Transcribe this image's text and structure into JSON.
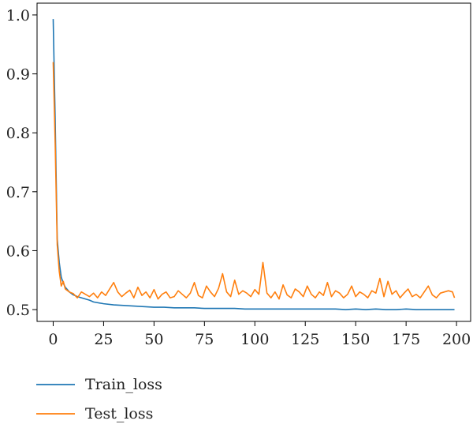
{
  "chart_data": {
    "type": "line",
    "title": "",
    "xlabel": "",
    "ylabel": "",
    "xlim": [
      -8,
      207
    ],
    "ylim": [
      0.48,
      1.02
    ],
    "xticks": [
      0,
      25,
      50,
      75,
      100,
      125,
      150,
      175,
      200
    ],
    "yticks": [
      0.5,
      0.6,
      0.7,
      0.8,
      0.9,
      1.0
    ],
    "ytick_labels": [
      "0.5",
      "0.6",
      "0.7",
      "0.8",
      "0.9",
      "1.0"
    ],
    "grid": false,
    "legend_position": "below-left",
    "series": [
      {
        "name": "Train_loss",
        "color": "#1f77b4",
        "x": [
          0,
          1,
          2,
          3,
          4,
          5,
          6,
          7,
          8,
          10,
          12,
          15,
          18,
          20,
          25,
          30,
          35,
          40,
          45,
          50,
          55,
          60,
          65,
          70,
          75,
          80,
          85,
          90,
          95,
          100,
          105,
          110,
          115,
          120,
          125,
          130,
          135,
          140,
          145,
          150,
          155,
          160,
          165,
          170,
          175,
          180,
          185,
          190,
          195,
          199
        ],
        "y": [
          0.993,
          0.82,
          0.62,
          0.58,
          0.555,
          0.545,
          0.538,
          0.534,
          0.53,
          0.525,
          0.522,
          0.519,
          0.516,
          0.513,
          0.51,
          0.508,
          0.507,
          0.506,
          0.505,
          0.504,
          0.504,
          0.503,
          0.503,
          0.503,
          0.502,
          0.502,
          0.502,
          0.502,
          0.501,
          0.501,
          0.501,
          0.501,
          0.501,
          0.501,
          0.501,
          0.501,
          0.501,
          0.501,
          0.5,
          0.501,
          0.5,
          0.501,
          0.5,
          0.5,
          0.501,
          0.5,
          0.5,
          0.5,
          0.5,
          0.5
        ]
      },
      {
        "name": "Test_loss",
        "color": "#ff7f0e",
        "x": [
          0,
          1,
          2,
          3,
          4,
          5,
          6,
          8,
          10,
          12,
          14,
          16,
          18,
          20,
          22,
          24,
          26,
          28,
          30,
          32,
          34,
          36,
          38,
          40,
          42,
          44,
          46,
          48,
          50,
          52,
          54,
          56,
          58,
          60,
          62,
          64,
          66,
          68,
          70,
          72,
          74,
          76,
          78,
          80,
          82,
          84,
          86,
          88,
          90,
          92,
          94,
          96,
          98,
          100,
          102,
          104,
          106,
          108,
          110,
          112,
          114,
          116,
          118,
          120,
          122,
          124,
          126,
          128,
          130,
          132,
          134,
          136,
          138,
          140,
          142,
          144,
          146,
          148,
          150,
          152,
          154,
          156,
          158,
          160,
          162,
          164,
          166,
          168,
          170,
          172,
          174,
          176,
          178,
          180,
          182,
          184,
          186,
          188,
          190,
          192,
          194,
          196,
          198,
          199
        ],
        "y": [
          0.92,
          0.78,
          0.61,
          0.565,
          0.54,
          0.548,
          0.535,
          0.53,
          0.527,
          0.52,
          0.53,
          0.526,
          0.522,
          0.528,
          0.52,
          0.53,
          0.524,
          0.535,
          0.546,
          0.53,
          0.522,
          0.528,
          0.533,
          0.52,
          0.538,
          0.524,
          0.53,
          0.52,
          0.534,
          0.518,
          0.526,
          0.53,
          0.52,
          0.522,
          0.532,
          0.526,
          0.52,
          0.528,
          0.546,
          0.524,
          0.52,
          0.54,
          0.53,
          0.522,
          0.536,
          0.561,
          0.53,
          0.522,
          0.55,
          0.526,
          0.532,
          0.528,
          0.522,
          0.534,
          0.526,
          0.58,
          0.528,
          0.52,
          0.53,
          0.518,
          0.542,
          0.525,
          0.52,
          0.535,
          0.53,
          0.522,
          0.54,
          0.526,
          0.52,
          0.53,
          0.524,
          0.546,
          0.522,
          0.532,
          0.528,
          0.52,
          0.526,
          0.54,
          0.522,
          0.53,
          0.526,
          0.52,
          0.532,
          0.528,
          0.553,
          0.522,
          0.548,
          0.526,
          0.532,
          0.52,
          0.528,
          0.535,
          0.522,
          0.526,
          0.52,
          0.53,
          0.54,
          0.525,
          0.52,
          0.528,
          0.53,
          0.532,
          0.53,
          0.52
        ]
      }
    ]
  }
}
